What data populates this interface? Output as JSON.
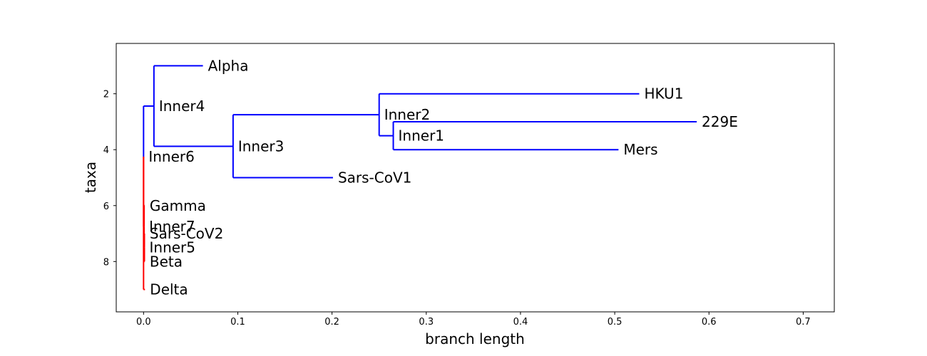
{
  "chart_data": {
    "type": "tree",
    "xlabel": "branch length",
    "ylabel": "taxa",
    "xlim": [
      -0.029,
      0.733
    ],
    "ylim": [
      9.8,
      0.2
    ],
    "xticks": [
      {
        "value": 0.0,
        "label": "0.0"
      },
      {
        "value": 0.1,
        "label": "0.1"
      },
      {
        "value": 0.2,
        "label": "0.2"
      },
      {
        "value": 0.3,
        "label": "0.3"
      },
      {
        "value": 0.4,
        "label": "0.4"
      },
      {
        "value": 0.5,
        "label": "0.5"
      },
      {
        "value": 0.6,
        "label": "0.6"
      },
      {
        "value": 0.7,
        "label": "0.7"
      }
    ],
    "yticks": [
      {
        "value": 2,
        "label": "2"
      },
      {
        "value": 4,
        "label": "4"
      },
      {
        "value": 6,
        "label": "6"
      },
      {
        "value": 8,
        "label": "8"
      }
    ],
    "colors": {
      "clade_a": "#0000ff",
      "clade_b": "#ff0000"
    },
    "nodes": [
      {
        "id": "Inner6",
        "label": "Inner6",
        "x": 0.0,
        "y": 4.25,
        "color": "clade_b"
      },
      {
        "id": "Inner4",
        "label": "Inner4",
        "parent": "Inner6",
        "x": 0.011,
        "y": 2.44,
        "color": "clade_a"
      },
      {
        "id": "Alpha",
        "label": "Alpha",
        "parent": "Inner4",
        "x": 0.063,
        "y": 1.0,
        "color": "clade_a"
      },
      {
        "id": "Inner3",
        "label": "Inner3",
        "parent": "Inner4",
        "x": 0.095,
        "y": 3.88,
        "color": "clade_a"
      },
      {
        "id": "Inner2",
        "label": "Inner2",
        "parent": "Inner3",
        "x": 0.25,
        "y": 2.75,
        "color": "clade_a"
      },
      {
        "id": "HKU1",
        "label": "HKU1",
        "parent": "Inner2",
        "x": 0.526,
        "y": 2.0,
        "color": "clade_a"
      },
      {
        "id": "Inner1",
        "label": "Inner1",
        "parent": "Inner2",
        "x": 0.265,
        "y": 3.5,
        "color": "clade_a"
      },
      {
        "id": "229E",
        "label": "229E",
        "parent": "Inner1",
        "x": 0.587,
        "y": 3.0,
        "color": "clade_a"
      },
      {
        "id": "Mers",
        "label": "Mers",
        "parent": "Inner1",
        "x": 0.504,
        "y": 4.0,
        "color": "clade_a"
      },
      {
        "id": "Sars-CoV1",
        "label": "Sars-CoV1",
        "parent": "Inner3",
        "x": 0.201,
        "y": 5.0,
        "color": "clade_a"
      },
      {
        "id": "Inner7",
        "label": "Inner7",
        "parent": "Inner6",
        "x": 0.0006,
        "y": 6.75,
        "color": "clade_b"
      },
      {
        "id": "Gamma",
        "label": "Gamma",
        "parent": "Inner7",
        "x": 0.0012,
        "y": 6.0,
        "color": "clade_b"
      },
      {
        "id": "Inner5",
        "label": "Inner5",
        "parent": "Inner7",
        "x": 0.0009,
        "y": 7.5,
        "color": "clade_b"
      },
      {
        "id": "Sars-CoV2",
        "label": "Sars-CoV2",
        "parent": "Inner5",
        "x": 0.0012,
        "y": 7.0,
        "color": "clade_b"
      },
      {
        "id": "Beta",
        "label": "Beta",
        "parent": "Inner5",
        "x": 0.0012,
        "y": 8.0,
        "color": "clade_b"
      },
      {
        "id": "Delta",
        "label": "Delta",
        "parent": "Inner6",
        "x": 0.0015,
        "y": 9.0,
        "color": "clade_b"
      }
    ]
  }
}
